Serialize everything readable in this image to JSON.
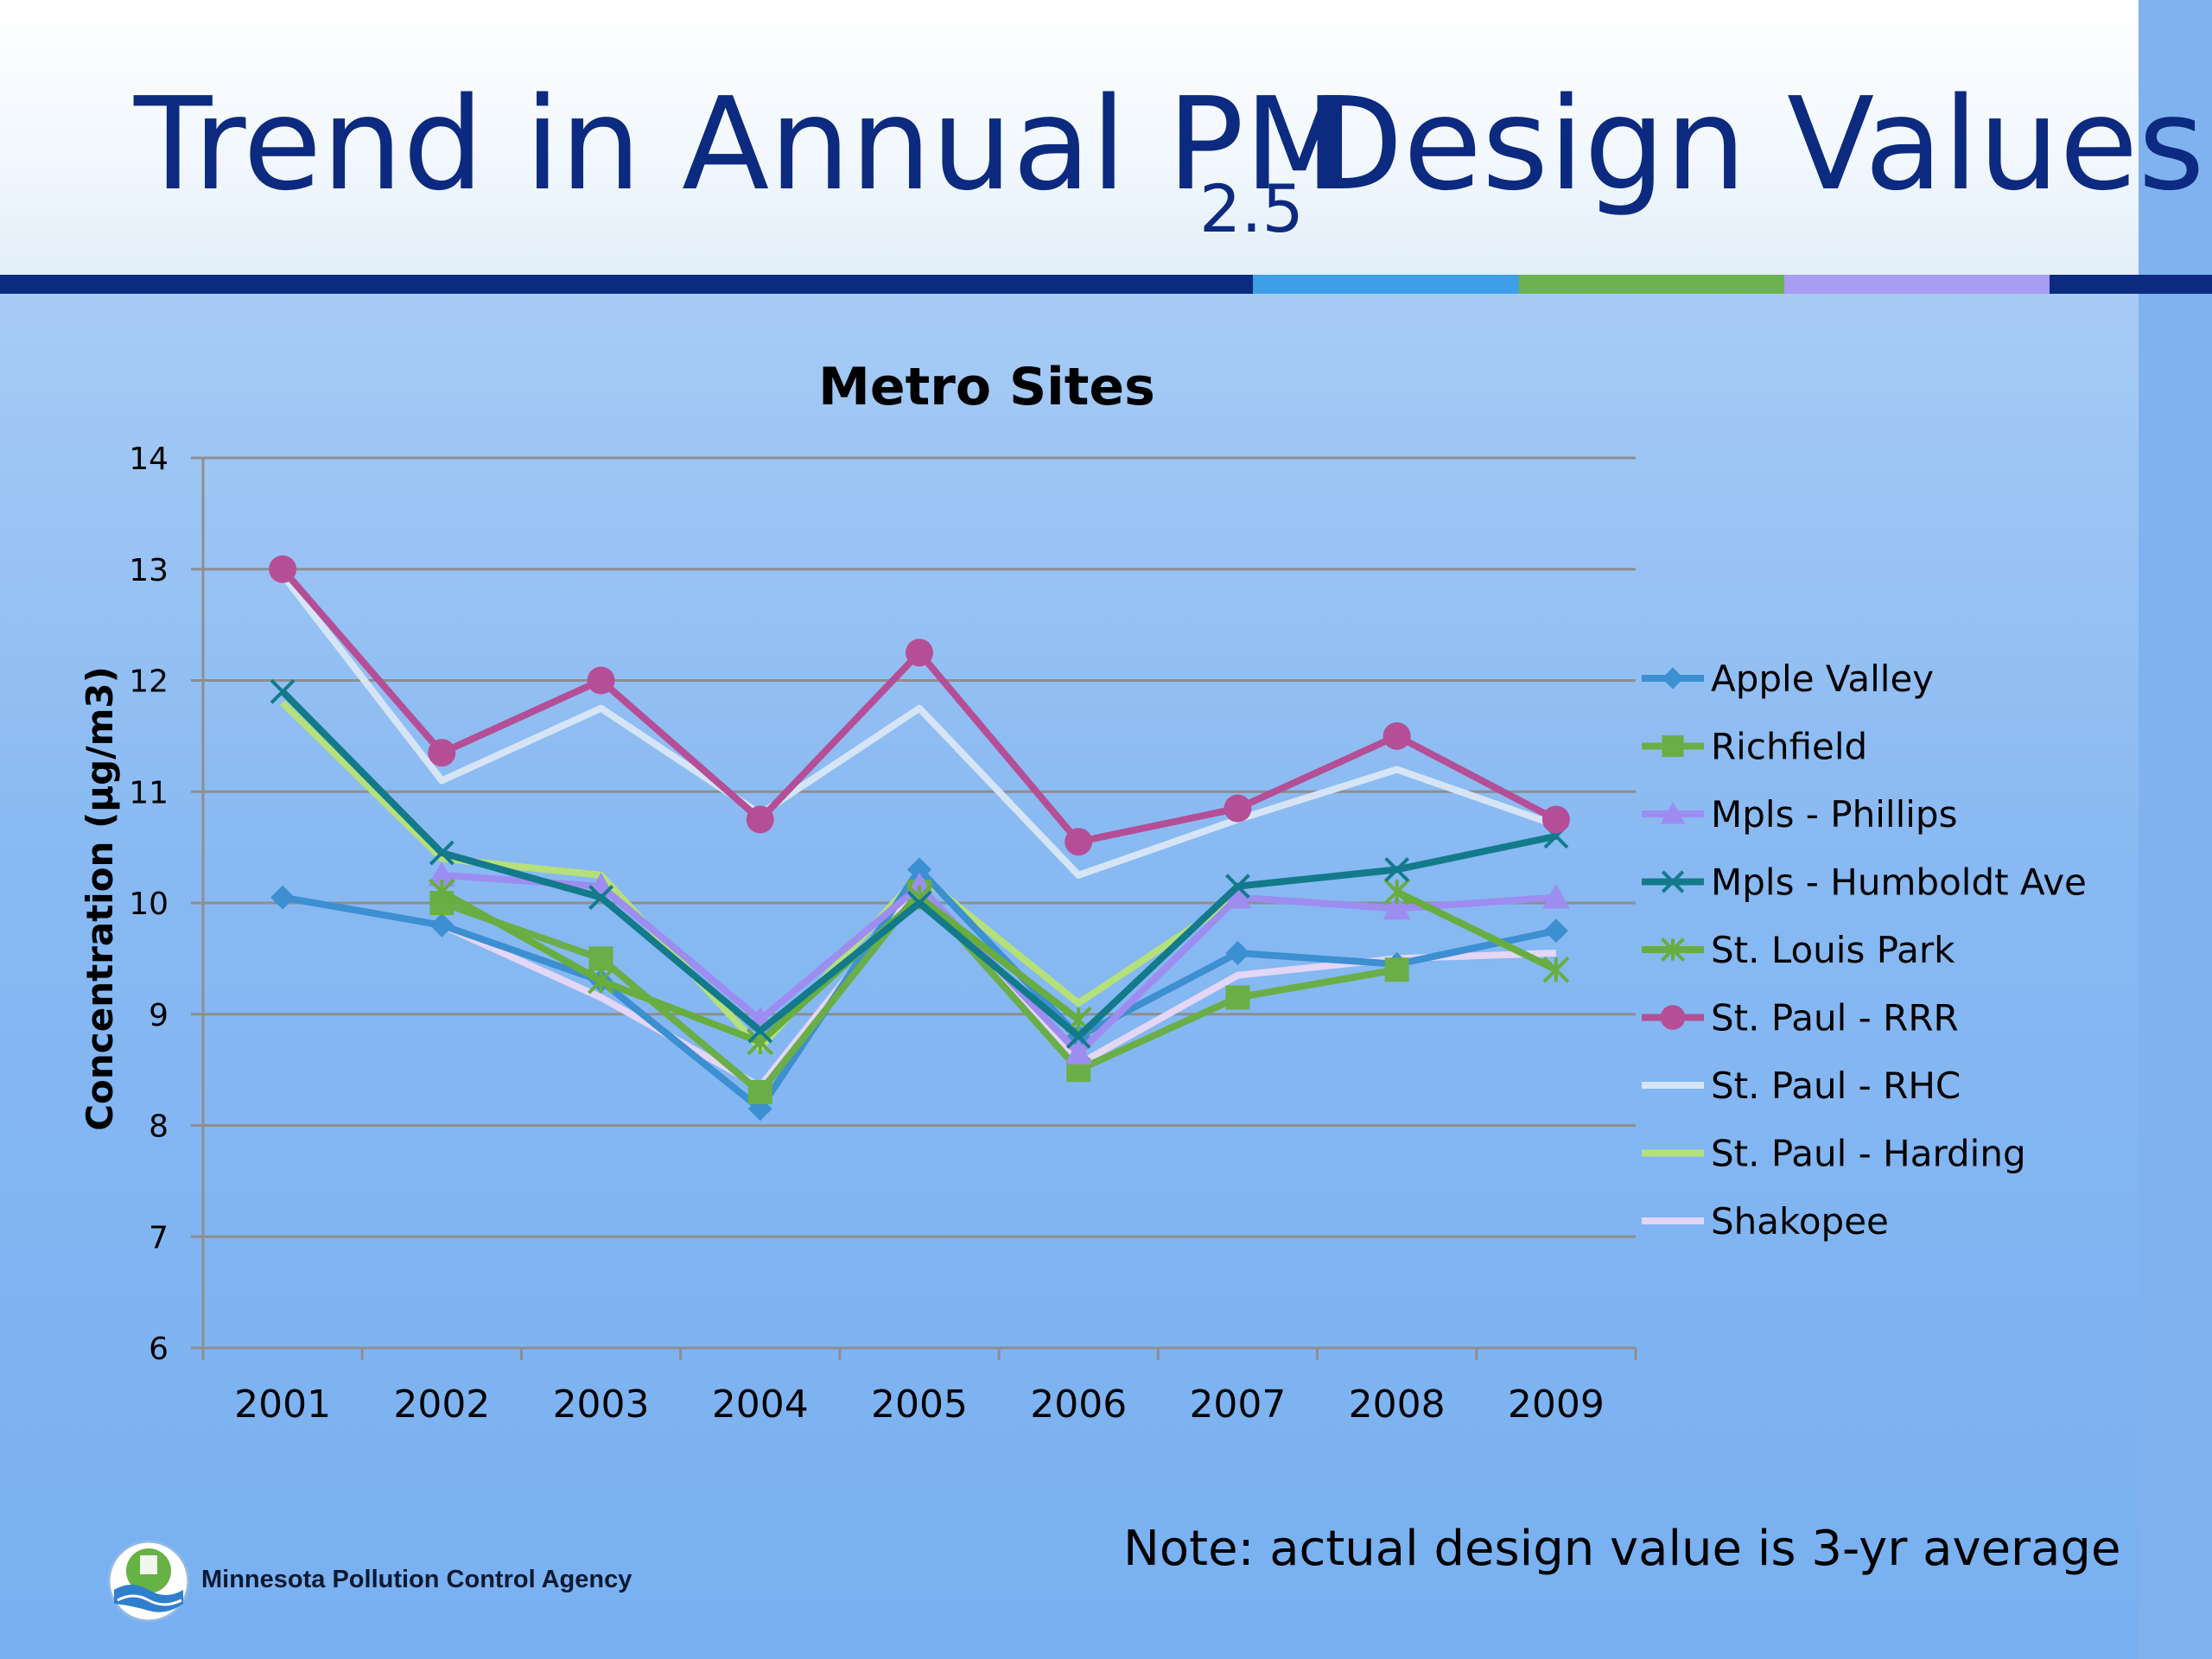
{
  "slide": {
    "title_main": "Trend in Annual PM",
    "title_sub": "2.5",
    "title_end": " Design Values",
    "note": "Note: actual design value is 3-yr average",
    "agency": "Minnesota Pollution Control Agency"
  },
  "colors": {
    "title": "#0c2a7f",
    "rule": [
      "#0c2a7f",
      "#3e9fe6",
      "#6cb24f",
      "#a89cf3",
      "#0c2a7f"
    ]
  },
  "chart_data": {
    "type": "line",
    "title": "Metro Sites",
    "xlabel": "",
    "ylabel": "Concentration (µg/m3)",
    "ylim": [
      6,
      14
    ],
    "yticks": [
      "6",
      "7",
      "8",
      "9",
      "10",
      "11",
      "12",
      "13",
      "14"
    ],
    "categories": [
      "2001",
      "2002",
      "2003",
      "2004",
      "2005",
      "2006",
      "2007",
      "2008",
      "2009"
    ],
    "grid": "horizontal",
    "legend": "right",
    "series": [
      {
        "name": "Apple Valley",
        "color": "#3c8fd0",
        "marker": "diamond",
        "values": [
          10.05,
          9.8,
          9.3,
          8.15,
          10.3,
          8.8,
          9.55,
          9.45,
          9.75
        ]
      },
      {
        "name": "Richfield",
        "color": "#6aae48",
        "marker": "square",
        "values": [
          null,
          10.0,
          9.5,
          8.3,
          10.1,
          8.5,
          9.15,
          9.4,
          null
        ]
      },
      {
        "name": "Mpls - Phillips",
        "color": "#9d8df0",
        "marker": "triangle",
        "values": [
          null,
          10.25,
          10.15,
          8.95,
          10.15,
          8.65,
          10.05,
          9.95,
          10.05
        ]
      },
      {
        "name": "Mpls - Humboldt Ave",
        "color": "#137a8c",
        "marker": "x",
        "values": [
          11.9,
          10.45,
          10.05,
          8.85,
          10.0,
          8.8,
          10.15,
          10.3,
          10.6
        ]
      },
      {
        "name": "St. Louis Park",
        "color": "#67ad3f",
        "marker": "star",
        "values": [
          null,
          10.1,
          9.3,
          8.75,
          10.05,
          8.95,
          null,
          10.1,
          9.4
        ]
      },
      {
        "name": "St. Paul - RRR",
        "color": "#b44f97",
        "marker": "circle",
        "values": [
          13.0,
          11.35,
          12.0,
          10.75,
          12.25,
          10.55,
          10.85,
          11.5,
          10.75
        ]
      },
      {
        "name": "St. Paul - RHC",
        "color": "#d6e5f6",
        "marker": "none",
        "values": [
          12.95,
          11.1,
          11.75,
          10.8,
          11.75,
          10.25,
          10.75,
          11.2,
          10.7
        ]
      },
      {
        "name": "St. Paul - Harding",
        "color": "#b5e07a",
        "marker": "none",
        "values": [
          11.8,
          10.4,
          10.25,
          8.7,
          10.25,
          9.1,
          10.05,
          null,
          null
        ]
      },
      {
        "name": "Shakopee",
        "color": "#e4d6f7",
        "marker": "none",
        "values": [
          null,
          9.8,
          9.15,
          8.35,
          10.15,
          8.55,
          9.35,
          9.5,
          9.55
        ]
      }
    ]
  }
}
